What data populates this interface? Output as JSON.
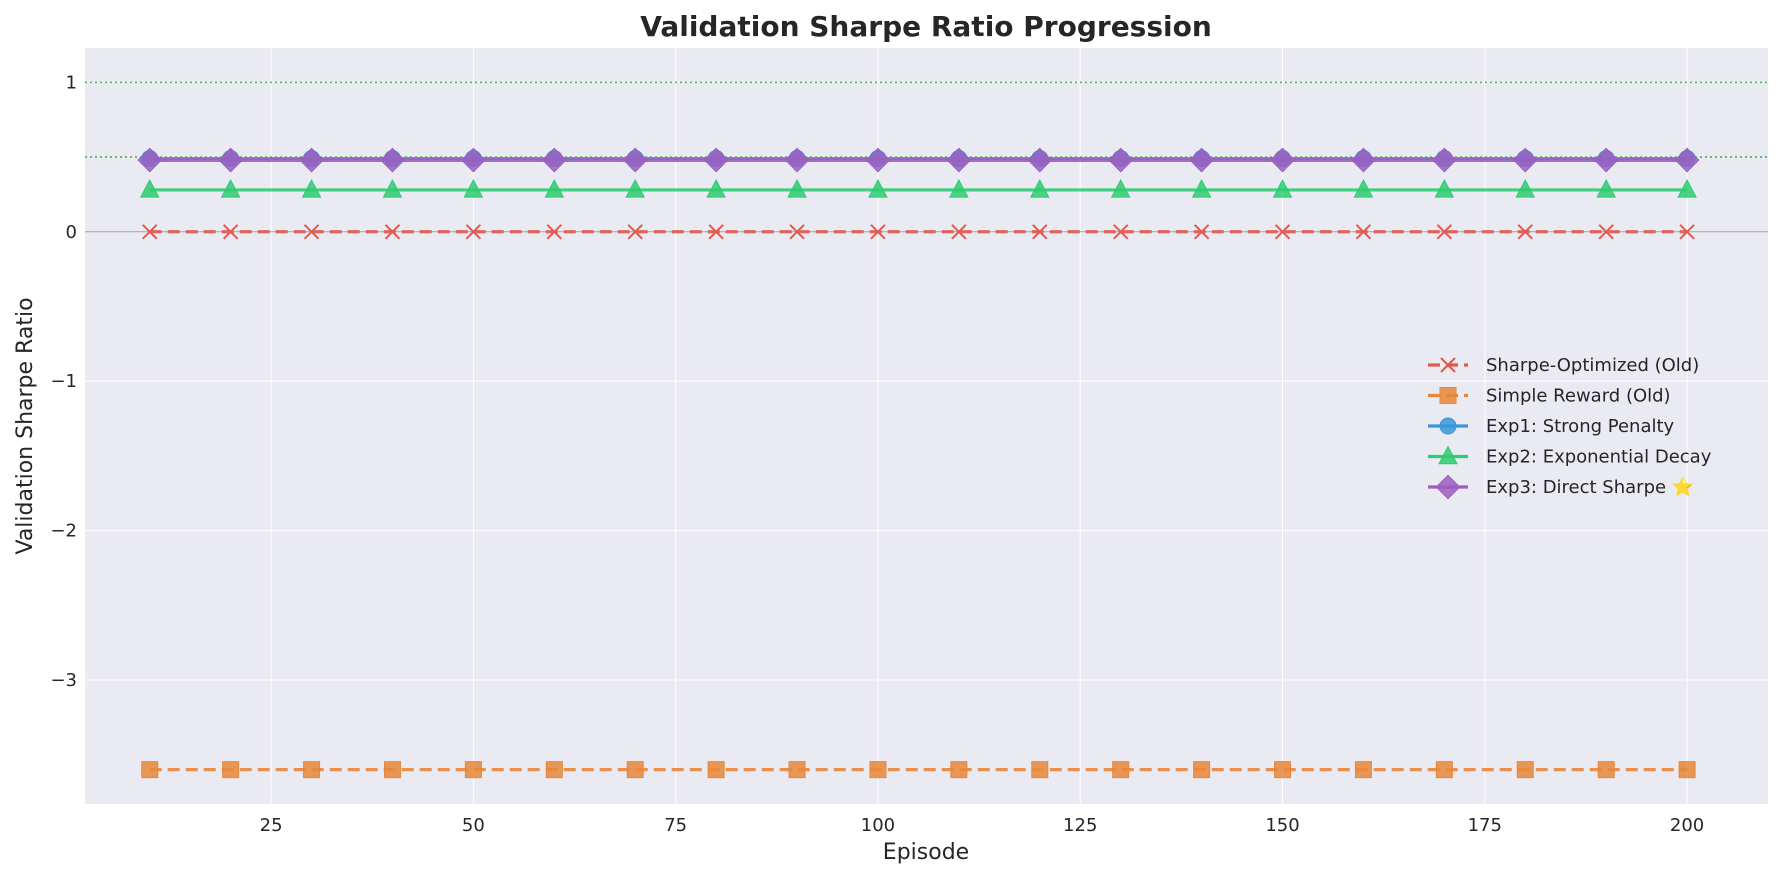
{
  "chart_data": {
    "type": "line",
    "title": "Validation Sharpe Ratio Progression",
    "xlabel": "Episode",
    "ylabel": "Validation Sharpe Ratio",
    "xlim": [
      2,
      210
    ],
    "ylim": [
      -3.83,
      1.23
    ],
    "xticks": [
      25,
      50,
      75,
      100,
      125,
      150,
      175,
      200
    ],
    "yticks": [
      -3,
      -2,
      -1,
      0,
      1
    ],
    "ytick_labels": [
      "−3",
      "−2",
      "−1",
      "0",
      "1"
    ],
    "grid": true,
    "legend_position": "center-right",
    "x": [
      10,
      20,
      30,
      40,
      50,
      60,
      70,
      80,
      90,
      100,
      110,
      120,
      130,
      140,
      150,
      160,
      170,
      180,
      190,
      200
    ],
    "reference_lines": [
      {
        "y": 1.0,
        "style": "dotted",
        "color": "#4caf50"
      },
      {
        "y": 0.5,
        "style": "dotted",
        "color": "#4caf50"
      },
      {
        "y": 0.0,
        "style": "solid",
        "color": "#a0a0a0"
      }
    ],
    "series": [
      {
        "name": "Sharpe-Optimized (Old)",
        "color": "#e05a4f",
        "marker": "x",
        "dash": "dashed",
        "value": 0.0
      },
      {
        "name": "Simple Reward (Old)",
        "color": "#e8873a",
        "marker": "square",
        "dash": "dashed",
        "value": -3.6
      },
      {
        "name": "Exp1: Strong Penalty",
        "color": "#3b97dc",
        "marker": "circle",
        "dash": "solid",
        "value": 0.49
      },
      {
        "name": "Exp2: Exponential Decay",
        "color": "#2ecc71",
        "marker": "triangle",
        "dash": "solid",
        "value": 0.28
      },
      {
        "name": "Exp3: Direct Sharpe ⭐",
        "color": "#9b5fc0",
        "marker": "diamond",
        "dash": "solid",
        "value": 0.48
      }
    ]
  }
}
